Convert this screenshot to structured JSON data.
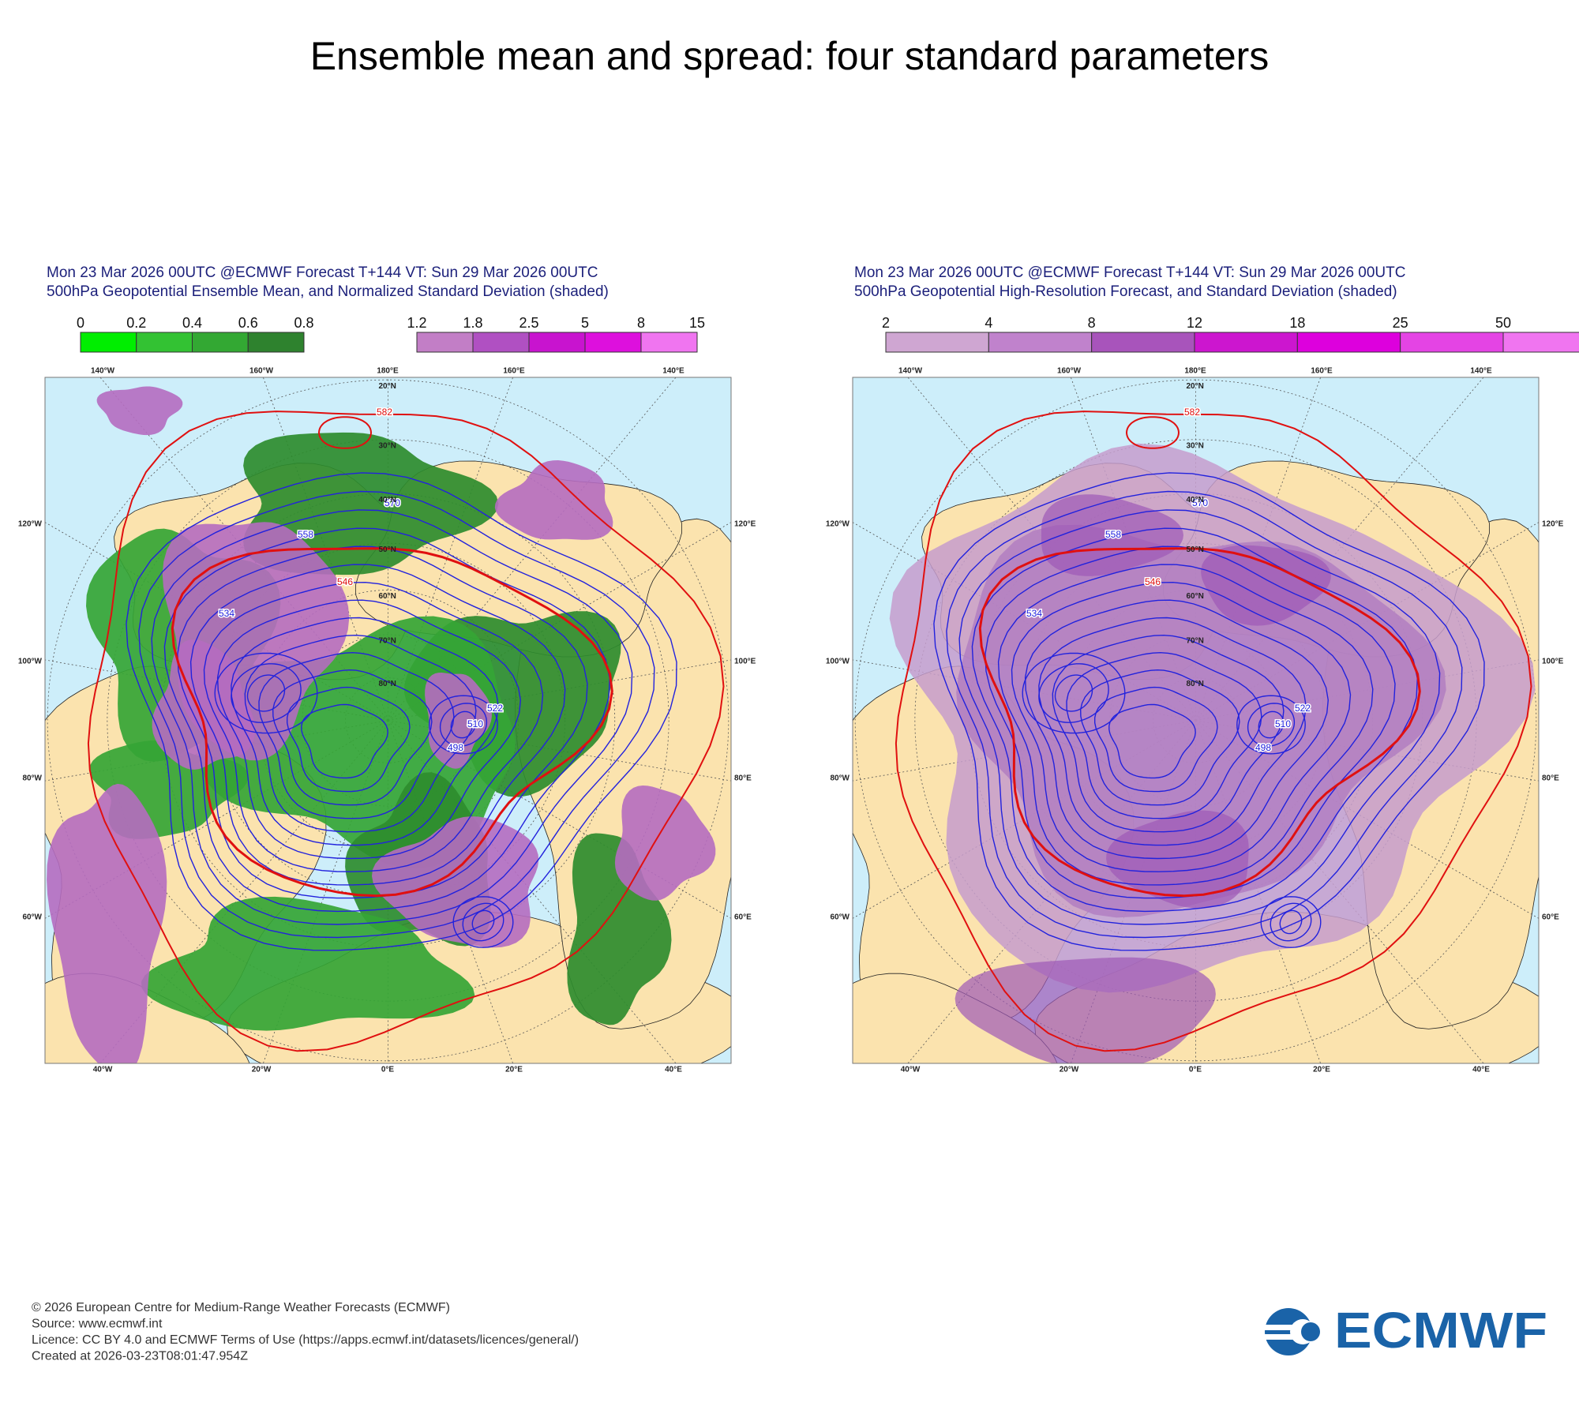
{
  "title": "Ensemble mean and spread: four standard parameters",
  "panels": [
    {
      "header": [
        "Mon 23 Mar 2026 00UTC @ECMWF Forecast T+144 VT: Sun 29 Mar 2026 00UTC",
        "500hPa Geopotential Ensemble Mean, and Normalized Standard Deviation (shaded)"
      ],
      "colorbars": [
        {
          "labels": [
            "0",
            "0.2",
            "0.4",
            "0.6",
            "0.8"
          ]
        },
        {
          "labels": [
            "1.2",
            "1.8",
            "2.5",
            "5",
            "8",
            "15"
          ]
        }
      ],
      "map": {
        "top_labels": [
          "140°W",
          "160°W",
          "180°E",
          "160°E",
          "140°E"
        ],
        "bottom_labels": [
          "40°W",
          "20°W",
          "0°E",
          "20°E",
          "40°E"
        ],
        "left_labels": [
          "120°W",
          "100°W",
          "80°W",
          "60°W"
        ],
        "right_labels": [
          "120°E",
          "100°E",
          "80°E",
          "60°E"
        ],
        "lat_labels": [
          "20°N",
          "30°N",
          "40°N",
          "50°N",
          "60°N",
          "70°N",
          "80°N"
        ],
        "contour_labels": [
          "582",
          "570",
          "558",
          "546",
          "534",
          "522",
          "510",
          "498"
        ]
      }
    },
    {
      "header": [
        "Mon 23 Mar 2026 00UTC @ECMWF Forecast T+144 VT: Sun 29 Mar 2026 00UTC",
        "500hPa Geopotential High-Resolution Forecast, and Standard Deviation (shaded)"
      ],
      "colorbars": [
        {
          "labels": [
            "2",
            "4",
            "8",
            "12",
            "18",
            "25",
            "50"
          ]
        }
      ],
      "map": {
        "top_labels": [
          "140°W",
          "160°W",
          "180°E",
          "160°E",
          "140°E"
        ],
        "bottom_labels": [
          "40°W",
          "20°W",
          "0°E",
          "20°E",
          "40°E"
        ],
        "left_labels": [
          "120°W",
          "100°W",
          "80°W",
          "60°W"
        ],
        "right_labels": [
          "120°E",
          "100°E",
          "80°E",
          "60°E"
        ],
        "lat_labels": [
          "20°N",
          "30°N",
          "40°N",
          "50°N",
          "60°N",
          "70°N",
          "80°N"
        ],
        "contour_labels": [
          "582",
          "570",
          "558",
          "546",
          "534",
          "522",
          "510",
          "498"
        ]
      }
    }
  ],
  "footer": [
    "© 2026 European Centre for Medium-Range Weather Forecasts (ECMWF)",
    "Source: www.ecmwf.int",
    "Licence: CC BY 4.0 and ECMWF Terms of Use (https://apps.ecmwf.int/datasets/licences/general/)",
    "Created at 2026-03-23T08:01:47.954Z"
  ],
  "logo": "ECMWF"
}
